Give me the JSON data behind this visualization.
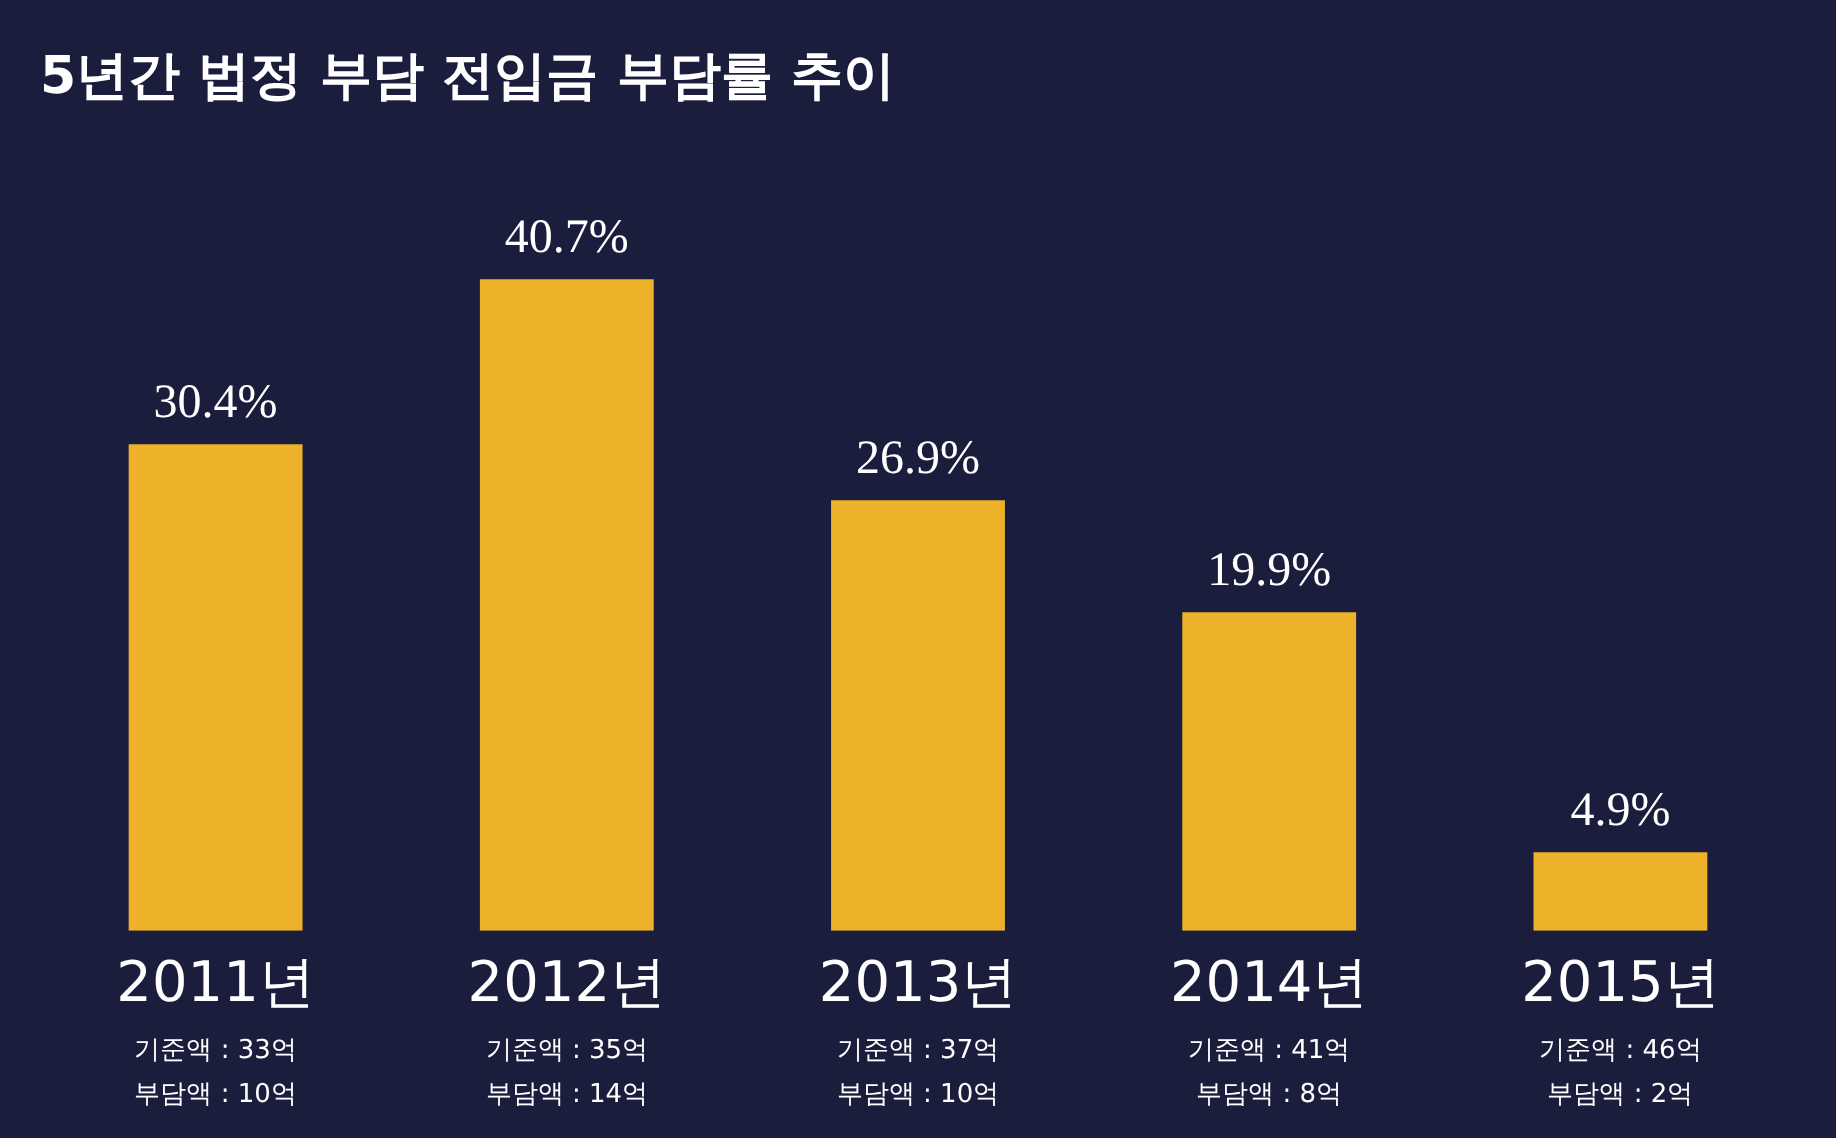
{
  "chart_data": {
    "type": "bar",
    "title": "5년간 법정 부담 전입금 부담률 추이",
    "categories": [
      "2011년",
      "2012년",
      "2013년",
      "2014년",
      "2015년"
    ],
    "values": [
      30.4,
      40.7,
      26.9,
      19.9,
      4.9
    ],
    "value_labels": [
      "30.4%",
      "40.7%",
      "26.9%",
      "19.9%",
      "4.9%"
    ],
    "color": "#eeb22a",
    "tick_labels": "x",
    "annotations": [
      "기준액 : 33억",
      "부담액 : 10억",
      "기준액 : 35억",
      "부담액 : 14억",
      "기준액 : 37억",
      "부담액 : 10억",
      "기준액 : 41억",
      "부담액 : 8억",
      "기준액 : 46억",
      "부담액 : 2억"
    ]
  }
}
